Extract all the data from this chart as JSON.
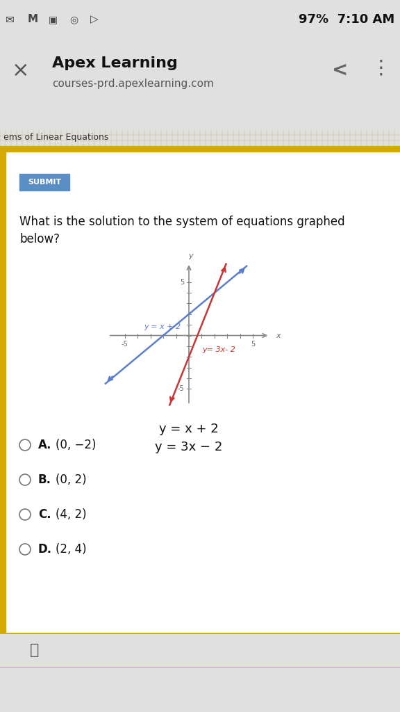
{
  "bg_color": "#e8e8e8",
  "status_bar_bg": "#c8c8c8",
  "status_bar_text": "97%  7:10 AM",
  "header_bg": "#ffffff",
  "header_title": "Apex Learning",
  "header_subtitle": "courses-prd.apexlearning.com",
  "nav_bar_bg": "#2a5298",
  "tab_bar_bg": "#d4a900",
  "tab_text": "ems of Linear Equations",
  "submit_btn_color": "#5b8ec4",
  "submit_btn_text": "SUBMIT",
  "question_text": "What is the solution to the system of equations graphed\nbelow?",
  "line1_color": "#5b7fcc",
  "line1_label": "y = x + 2",
  "line2_color": "#cc3333",
  "line2_label": "y= 3x- 2",
  "axis_color": "#888888",
  "tick_color": "#888888",
  "tick_label_color": "#666666",
  "graph_bg": "#ffffff",
  "graph_border": "#bbbbbb",
  "legend_text1": "y = x + 2",
  "legend_text2": "y = 3x − 2",
  "choices_letters": [
    "A",
    "B",
    "C",
    "D"
  ],
  "choices_text": [
    "(0, −2)",
    "(0, 2)",
    "(4, 2)",
    "(2, 4)"
  ],
  "panel_border_color": "#d4a900",
  "panel_bg": "#ffffff",
  "content_bg": "#f5f0e8",
  "footer_bg": "#d0d0d0",
  "outer_bg": "#e0e0e0"
}
